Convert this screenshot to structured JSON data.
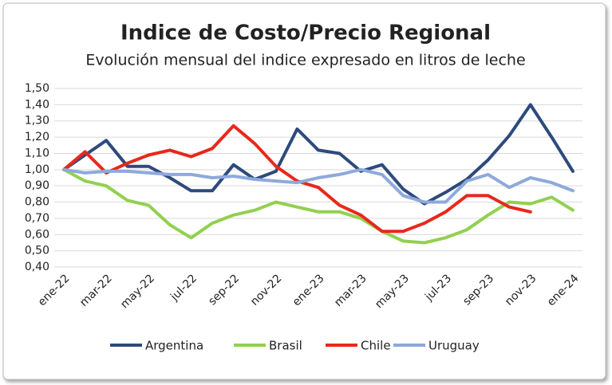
{
  "chart_data": {
    "type": "line",
    "title": "Indice de Costo/Precio Regional",
    "subtitle": "Evolución mensual del indice expresado en litros de leche",
    "categories": [
      "ene-22",
      null,
      "mar-22",
      null,
      "may-22",
      null,
      "jul-22",
      null,
      "sep-22",
      null,
      "nov-22",
      null,
      "ene-23",
      null,
      "mar-23",
      null,
      "may-23",
      null,
      "jul-23",
      null,
      "sep-23",
      null,
      "nov-23",
      null,
      "ene-24"
    ],
    "series": [
      {
        "name": "Argentina",
        "color": "#2e4a7d",
        "values": [
          1.0,
          1.09,
          1.18,
          1.02,
          1.02,
          0.95,
          0.87,
          0.87,
          1.03,
          0.94,
          0.99,
          1.25,
          1.12,
          1.1,
          0.99,
          1.03,
          0.88,
          0.79,
          0.86,
          0.94,
          1.06,
          1.21,
          1.4,
          1.2,
          0.99
        ]
      },
      {
        "name": "Brasil",
        "color": "#92d050",
        "values": [
          1.0,
          0.93,
          0.9,
          0.81,
          0.78,
          0.66,
          0.58,
          0.67,
          0.72,
          0.75,
          0.8,
          0.77,
          0.74,
          0.74,
          0.7,
          0.62,
          0.56,
          0.55,
          0.58,
          0.63,
          0.72,
          0.8,
          0.79,
          0.83,
          0.75
        ]
      },
      {
        "name": "Chile",
        "color": "#e8281c",
        "values": [
          1.0,
          1.11,
          0.98,
          1.04,
          1.09,
          1.12,
          1.08,
          1.13,
          1.27,
          1.16,
          1.02,
          0.93,
          0.89,
          0.78,
          0.72,
          0.62,
          0.62,
          0.67,
          0.74,
          0.84,
          0.84,
          0.77,
          0.74,
          null,
          null
        ]
      },
      {
        "name": "Uruguay",
        "color": "#8ea9db",
        "values": [
          1.0,
          0.98,
          0.99,
          0.99,
          0.98,
          0.97,
          0.97,
          0.95,
          0.96,
          0.94,
          0.93,
          0.92,
          0.95,
          0.97,
          1.0,
          0.97,
          0.84,
          0.8,
          0.8,
          0.93,
          0.97,
          0.89,
          0.95,
          0.92,
          0.87
        ]
      }
    ],
    "ylim": [
      0.4,
      1.5
    ],
    "yticks": [
      {
        "value": 0.4,
        "label": "0,40"
      },
      {
        "value": 0.5,
        "label": "0,50"
      },
      {
        "value": 0.6,
        "label": "0,60"
      },
      {
        "value": 0.7,
        "label": "0,70"
      },
      {
        "value": 0.8,
        "label": "0,80"
      },
      {
        "value": 0.9,
        "label": "0,90"
      },
      {
        "value": 1.0,
        "label": "1,00"
      },
      {
        "value": 1.1,
        "label": "1,10"
      },
      {
        "value": 1.2,
        "label": "1,20"
      },
      {
        "value": 1.3,
        "label": "1,30"
      },
      {
        "value": 1.4,
        "label": "1,40"
      },
      {
        "value": 1.5,
        "label": "1,50"
      }
    ],
    "grid": true,
    "legend": "bottom"
  }
}
